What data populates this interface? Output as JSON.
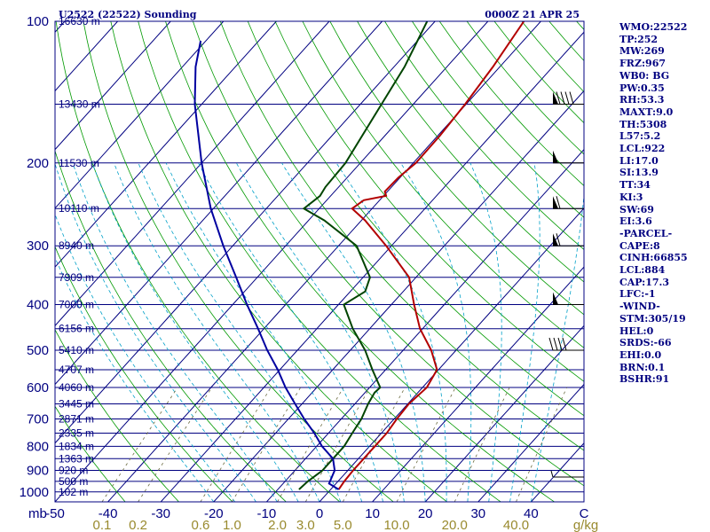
{
  "chart_data": {
    "type": "line",
    "title": "U2522 (22522) Sounding",
    "valid_time": "0000Z 21 APR 25",
    "axes": {
      "pressure_hpa_range": [
        1050,
        100
      ],
      "pressure_scale": "log",
      "temperature_c_range": [
        -50,
        50
      ],
      "skew": "skew-T",
      "pressure_ticks": [
        "100",
        "200",
        "300",
        "400",
        "500",
        "600",
        "700",
        "800",
        "900",
        "1000"
      ],
      "pressure_unit_label": "mb",
      "temperature_ticks": [
        "-50",
        "-40",
        "-30",
        "-20",
        "-10",
        "0",
        "10",
        "20",
        "30",
        "40"
      ],
      "temperature_tick_truncated": "C",
      "mixing_ratio_ticks": [
        "0.1",
        "0.2",
        "0.6",
        "1.0",
        "2.0",
        "3.0",
        "5.0",
        "10.0",
        "20.0",
        "40.0"
      ],
      "mixing_ratio_unit": "g/kg"
    },
    "height_labels": [
      {
        "p": 100,
        "label": "16630 m"
      },
      {
        "p": 150,
        "label": "13430 m"
      },
      {
        "p": 200,
        "label": "11530 m"
      },
      {
        "p": 250,
        "label": "10110 m"
      },
      {
        "p": 300,
        "label": "8940 m"
      },
      {
        "p": 350,
        "label": "7909 m"
      },
      {
        "p": 400,
        "label": "7000 m"
      },
      {
        "p": 450,
        "label": "6156 m"
      },
      {
        "p": 500,
        "label": "5410 m"
      },
      {
        "p": 550,
        "label": "4707 m"
      },
      {
        "p": 600,
        "label": "4060 m"
      },
      {
        "p": 650,
        "label": "3445 m"
      },
      {
        "p": 700,
        "label": "2871 m"
      },
      {
        "p": 750,
        "label": "2335 m"
      },
      {
        "p": 800,
        "label": "1834 m"
      },
      {
        "p": 850,
        "label": "1363 m"
      },
      {
        "p": 900,
        "label": "920 m"
      },
      {
        "p": 950,
        "label": "500 m"
      },
      {
        "p": 1000,
        "label": "102 m"
      }
    ],
    "series": [
      {
        "role": "temperature",
        "color": "#b30000",
        "points": [
          [
            988,
            1.5
          ],
          [
            950,
            1.2
          ],
          [
            900,
            1.0
          ],
          [
            850,
            1.0
          ],
          [
            800,
            1.0
          ],
          [
            750,
            1.0
          ],
          [
            700,
            0.5
          ],
          [
            650,
            0.2
          ],
          [
            600,
            0.8
          ],
          [
            550,
            -0.3
          ],
          [
            500,
            -4.7
          ],
          [
            450,
            -10.5
          ],
          [
            400,
            -15.7
          ],
          [
            350,
            -21.3
          ],
          [
            300,
            -31.0
          ],
          [
            265,
            -39.3
          ],
          [
            250,
            -43.8
          ],
          [
            240,
            -43.0
          ],
          [
            235,
            -39.5
          ],
          [
            230,
            -40.5
          ],
          [
            215,
            -40.3
          ],
          [
            200,
            -39.5
          ],
          [
            175,
            -39.6
          ],
          [
            150,
            -40.2
          ],
          [
            125,
            -41.3
          ],
          [
            100,
            -43.2
          ]
        ]
      },
      {
        "role": "dewpoint",
        "color": "#004400",
        "points": [
          [
            988,
            -6.0
          ],
          [
            950,
            -5.7
          ],
          [
            900,
            -4.8
          ],
          [
            850,
            -4.8
          ],
          [
            800,
            -4.8
          ],
          [
            750,
            -5.5
          ],
          [
            700,
            -6.2
          ],
          [
            650,
            -7.5
          ],
          [
            615,
            -8.2
          ],
          [
            600,
            -8.0
          ],
          [
            550,
            -12.5
          ],
          [
            500,
            -17.2
          ],
          [
            450,
            -23.2
          ],
          [
            400,
            -29.0
          ],
          [
            375,
            -27.2
          ],
          [
            350,
            -28.7
          ],
          [
            300,
            -36.6
          ],
          [
            265,
            -47.0
          ],
          [
            250,
            -52.9
          ],
          [
            235,
            -52.0
          ],
          [
            225,
            -52.5
          ],
          [
            200,
            -52.8
          ],
          [
            150,
            -56.0
          ],
          [
            125,
            -58.0
          ],
          [
            100,
            -61.5
          ]
        ]
      },
      {
        "role": "parcel",
        "color": "#0000a0",
        "points": [
          [
            988,
            1.5
          ],
          [
            960,
            -1.3
          ],
          [
            900,
            -2.5
          ],
          [
            850,
            -4.8
          ],
          [
            800,
            -9.0
          ],
          [
            750,
            -12.7
          ],
          [
            700,
            -17.0
          ],
          [
            650,
            -21.3
          ],
          [
            600,
            -25.9
          ],
          [
            550,
            -30.4
          ],
          [
            500,
            -35.7
          ],
          [
            450,
            -41.1
          ],
          [
            400,
            -47.3
          ],
          [
            350,
            -54.0
          ],
          [
            300,
            -61.8
          ],
          [
            250,
            -70.5
          ],
          [
            200,
            -80.0
          ],
          [
            150,
            -91.3
          ],
          [
            125,
            -97.5
          ],
          [
            110,
            -101.0
          ]
        ]
      }
    ],
    "wind_barbs": [
      {
        "p": 150,
        "speed_kt": 90
      },
      {
        "p": 200,
        "speed_kt": 50
      },
      {
        "p": 250,
        "speed_kt": 60
      },
      {
        "p": 300,
        "speed_kt": 60
      },
      {
        "p": 400,
        "speed_kt": 50
      },
      {
        "p": 500,
        "speed_kt": 40
      },
      {
        "p": 930,
        "speed_kt": 5
      }
    ],
    "colors": {
      "frame": "#000080",
      "isobar": "#000080",
      "isotherm": "#000080",
      "dry_adiabat": "#009900",
      "moist_adiabat": "#00a0c8",
      "mixing_ratio": "#6b6b40",
      "temperature": "#b30000",
      "dewpoint": "#004400",
      "parcel": "#0000a0",
      "label_text": "#000080",
      "mixing_label_text": "#998a2e"
    }
  },
  "indices": [
    "WMO:22522",
    "TP:252",
    "MW:269",
    "FRZ:967",
    "WB0: BG",
    "PW:0.35",
    "RH:53.3",
    "MAXT:9.0",
    "TH:5308",
    "L57:5.2",
    "LCL:922",
    "LI:17.0",
    "SI:13.9",
    "TT:34",
    "KI:3",
    "SW:69",
    "EI:3.6",
    "-PARCEL-",
    "CAPE:8",
    "CINH:66855",
    "LCL:884",
    "CAP:17.3",
    "LFC:-1",
    "-WIND-",
    "STM:305/19",
    "HEL:0",
    "SRDS:-66",
    "EHI:0.0",
    "BRN:0.1",
    "BSHR:91"
  ]
}
